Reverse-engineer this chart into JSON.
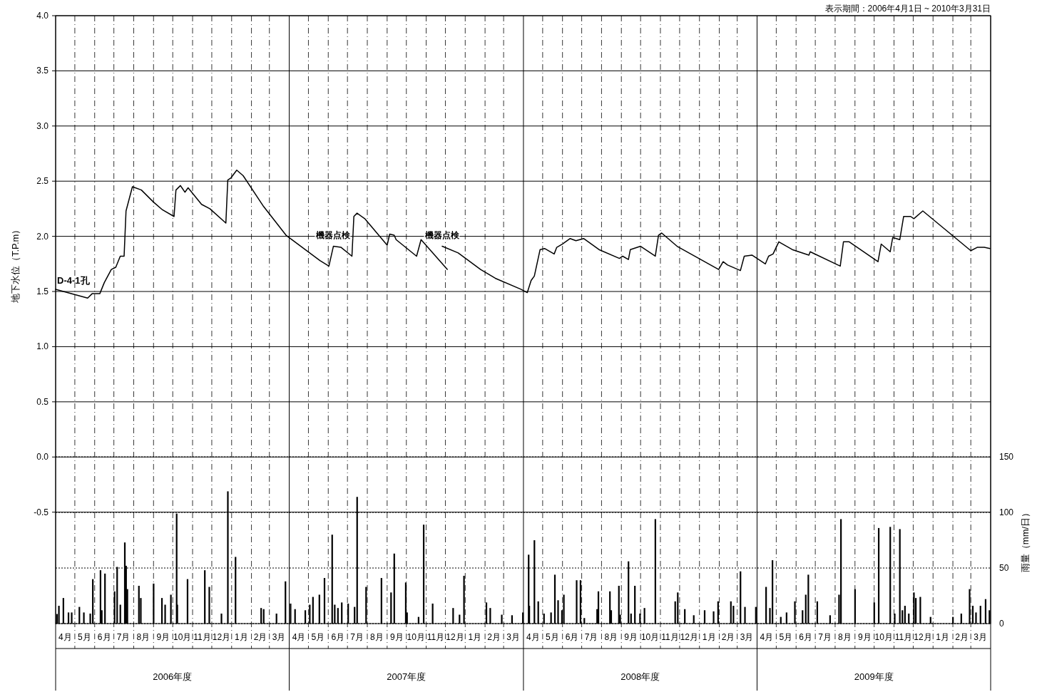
{
  "chart_data": {
    "type": "line",
    "subtitle": "表示期間：2006年4月1日 ~ 2010年3月31日",
    "ylabel": "地下水位（T.P.m）",
    "y2label": "雨量（mm/日）",
    "xlim": [
      "2006-04-01",
      "2010-04-01"
    ],
    "ylim": [
      -1.51,
      4.0
    ],
    "y2lim": [
      0,
      547
    ],
    "yticks": [
      {
        "value": 4,
        "label": "4.0"
      },
      {
        "value": 3.5,
        "label": "3.5"
      },
      {
        "value": 3,
        "label": "3.0"
      },
      {
        "value": 2.5,
        "label": "2.5"
      },
      {
        "value": 2,
        "label": "2.0"
      },
      {
        "value": 1.5,
        "label": "1.5"
      },
      {
        "value": 1,
        "label": "1.0"
      },
      {
        "value": 0.5,
        "label": "0.5"
      },
      {
        "value": 0,
        "label": "0.0"
      },
      {
        "value": -0.5,
        "label": "-0.5"
      }
    ],
    "y2ticks": [
      0,
      50,
      100,
      150
    ],
    "xticks": [
      {
        "value": "2006-04-16",
        "label": "4月"
      },
      {
        "value": "2006-05-16",
        "label": "5月"
      },
      {
        "value": "2006-06-16",
        "label": "6月"
      },
      {
        "value": "2006-07-16",
        "label": "7月"
      },
      {
        "value": "2006-08-16",
        "label": "8月"
      },
      {
        "value": "2006-09-16",
        "label": "9月"
      },
      {
        "value": "2006-10-16",
        "label": "10月"
      },
      {
        "value": "2006-11-16",
        "label": "11月"
      },
      {
        "value": "2006-12-16",
        "label": "12月"
      },
      {
        "value": "2007-01-16",
        "label": "1月"
      },
      {
        "value": "2007-02-15",
        "label": "2月"
      },
      {
        "value": "2007-03-16",
        "label": "3月"
      },
      {
        "value": "2007-04-16",
        "label": "4月"
      },
      {
        "value": "2007-05-16",
        "label": "5月"
      },
      {
        "value": "2007-06-16",
        "label": "6月"
      },
      {
        "value": "2007-07-16",
        "label": "7月"
      },
      {
        "value": "2007-08-16",
        "label": "8月"
      },
      {
        "value": "2007-09-16",
        "label": "9月"
      },
      {
        "value": "2007-10-16",
        "label": "10月"
      },
      {
        "value": "2007-11-16",
        "label": "11月"
      },
      {
        "value": "2007-12-16",
        "label": "12月"
      },
      {
        "value": "2008-01-16",
        "label": "1月"
      },
      {
        "value": "2008-02-15",
        "label": "2月"
      },
      {
        "value": "2008-03-16",
        "label": "3月"
      },
      {
        "value": "2008-04-16",
        "label": "4月"
      },
      {
        "value": "2008-05-16",
        "label": "5月"
      },
      {
        "value": "2008-06-16",
        "label": "6月"
      },
      {
        "value": "2008-07-16",
        "label": "7月"
      },
      {
        "value": "2008-08-16",
        "label": "8月"
      },
      {
        "value": "2008-09-16",
        "label": "9月"
      },
      {
        "value": "2008-10-16",
        "label": "10月"
      },
      {
        "value": "2008-11-16",
        "label": "11月"
      },
      {
        "value": "2008-12-16",
        "label": "12月"
      },
      {
        "value": "2009-01-16",
        "label": "1月"
      },
      {
        "value": "2009-02-15",
        "label": "2月"
      },
      {
        "value": "2009-03-16",
        "label": "3月"
      },
      {
        "value": "2009-04-16",
        "label": "4月"
      },
      {
        "value": "2009-05-16",
        "label": "5月"
      },
      {
        "value": "2009-06-16",
        "label": "6月"
      },
      {
        "value": "2009-07-16",
        "label": "7月"
      },
      {
        "value": "2009-08-16",
        "label": "8月"
      },
      {
        "value": "2009-09-16",
        "label": "9月"
      },
      {
        "value": "2009-10-16",
        "label": "10月"
      },
      {
        "value": "2009-11-16",
        "label": "11月"
      },
      {
        "value": "2009-12-16",
        "label": "12月"
      },
      {
        "value": "2010-01-16",
        "label": "1月"
      },
      {
        "value": "2010-02-15",
        "label": "2月"
      },
      {
        "value": "2010-03-16",
        "label": "3月"
      }
    ],
    "grid": true,
    "annotations": [
      {
        "text": "機器点検",
        "x": "2007-06-09",
        "y": 1.91
      },
      {
        "text": "機器点検",
        "x": "2007-11-26",
        "y": 1.91
      },
      "2006年度",
      "2007年度",
      "2008年度",
      "2009年度"
    ],
    "series": [
      {
        "name": "D-4-1孔",
        "color": "#000000",
        "x": [
          "2006-04-01",
          "2006-05-21",
          "2006-05-28",
          "2006-06-09",
          "2006-06-16",
          "2006-06-27",
          "2006-07-04",
          "2006-07-11",
          "2006-07-17",
          "2006-07-20",
          "2006-07-30",
          "2006-08-13",
          "2006-09-01",
          "2006-09-15",
          "2006-10-03",
          "2006-10-06",
          "2006-10-13",
          "2006-10-20",
          "2006-10-25",
          "2006-11-15",
          "2006-11-28",
          "2006-12-23",
          "2006-12-26",
          "2006-12-31",
          "2007-01-09",
          "2007-01-19",
          "2007-02-20",
          "2007-03-27",
          "2007-05-19",
          "2007-06-02",
          "2007-06-09",
          "2007-06-21",
          "2007-07-08",
          "2007-07-11",
          "2007-07-16",
          "2007-07-28",
          "2007-09-01",
          "2007-09-05",
          "2007-09-12",
          "2007-09-15",
          "2007-10-17",
          "2007-10-24",
          "2007-12-04",
          "2007-11-30",
          "2007-11-26",
          "2007-12-21",
          "2008-01-25",
          "2008-02-17",
          "2008-03-28",
          "2008-04-07",
          "2008-04-13",
          "2008-04-18",
          "2008-04-27",
          "2008-05-04",
          "2008-05-19",
          "2008-05-23",
          "2008-06-01",
          "2008-06-13",
          "2008-06-22",
          "2008-07-04",
          "2008-07-28",
          "2008-08-29",
          "2008-09-03",
          "2008-09-12",
          "2008-09-15",
          "2008-10-01",
          "2008-10-24",
          "2008-10-29",
          "2008-11-03",
          "2008-11-27",
          "2009-01-31",
          "2009-02-07",
          "2009-02-14",
          "2009-03-06",
          "2009-03-12",
          "2009-03-24",
          "2009-04-14",
          "2009-04-19",
          "2009-04-26",
          "2009-05-05",
          "2009-05-26",
          "2009-06-21",
          "2009-06-23",
          "2009-08-09",
          "2009-08-14",
          "2009-08-23",
          "2009-10-07",
          "2009-10-12",
          "2009-10-26",
          "2009-10-30",
          "2009-11-10",
          "2009-11-16",
          "2009-11-27",
          "2009-12-02",
          "2009-12-16",
          "2010-03-01",
          "2010-03-11",
          "2010-03-22",
          "2010-03-31"
        ],
        "values": [
          1.52,
          1.44,
          1.48,
          1.48,
          1.58,
          1.7,
          1.72,
          1.82,
          1.82,
          2.23,
          2.45,
          2.42,
          2.31,
          2.24,
          2.18,
          2.42,
          2.46,
          2.4,
          2.44,
          2.29,
          2.25,
          2.12,
          2.51,
          2.53,
          2.6,
          2.55,
          2.27,
          2.01,
          1.78,
          1.73,
          1.91,
          1.9,
          1.82,
          2.18,
          2.21,
          2.16,
          1.92,
          2.02,
          2.01,
          1.97,
          1.82,
          1.97,
          1.7,
          null,
          1.91,
          1.85,
          1.7,
          1.62,
          1.52,
          1.49,
          1.6,
          1.64,
          1.88,
          1.89,
          1.84,
          1.9,
          1.93,
          1.98,
          1.96,
          1.98,
          1.88,
          1.8,
          1.82,
          1.79,
          1.88,
          1.91,
          1.82,
          2.01,
          2.03,
          1.91,
          1.7,
          1.77,
          1.74,
          1.69,
          1.82,
          1.83,
          1.75,
          1.82,
          1.84,
          1.95,
          1.88,
          1.83,
          1.86,
          1.73,
          1.95,
          1.95,
          1.77,
          1.93,
          1.86,
          1.99,
          1.97,
          2.18,
          2.18,
          2.16,
          2.23,
          1.87,
          1.9,
          1.9,
          1.89
        ]
      },
      {
        "type": "bar",
        "axis": "y2",
        "color": "#000000",
        "x": [
          "2006-04-03",
          "2006-04-06",
          "2006-04-13",
          "2006-04-21",
          "2006-04-26",
          "2006-05-08",
          "2006-05-15",
          "2006-05-25",
          "2006-05-29",
          "2006-06-10",
          "2006-06-12",
          "2006-06-17",
          "2006-07-02",
          "2006-07-06",
          "2006-07-11",
          "2006-07-18",
          "2006-07-20",
          "2006-07-22",
          "2006-08-09",
          "2006-08-12",
          "2006-09-01",
          "2006-09-14",
          "2006-09-19",
          "2006-09-28",
          "2006-10-07",
          "2006-10-08",
          "2006-10-24",
          "2006-11-20",
          "2006-11-27",
          "2006-12-16",
          "2006-12-26",
          "2007-01-07",
          "2007-02-16",
          "2007-02-20",
          "2007-03-12",
          "2007-03-26",
          "2007-04-03",
          "2007-04-10",
          "2007-04-26",
          "2007-05-03",
          "2007-05-08",
          "2007-05-18",
          "2007-05-26",
          "2007-06-07",
          "2007-06-11",
          "2007-06-16",
          "2007-06-22",
          "2007-07-02",
          "2007-07-12",
          "2007-07-16",
          "2007-07-30",
          "2007-08-23",
          "2007-09-07",
          "2007-09-12",
          "2007-09-30",
          "2007-10-02",
          "2007-10-20",
          "2007-10-28",
          "2007-11-11",
          "2007-12-13",
          "2007-12-23",
          "2007-12-30",
          "2008-02-03",
          "2008-02-09",
          "2008-02-27",
          "2008-03-14",
          "2008-03-31",
          "2008-04-09",
          "2008-04-10",
          "2008-04-18",
          "2008-04-24",
          "2008-05-03",
          "2008-05-14",
          "2008-05-20",
          "2008-05-25",
          "2008-05-31",
          "2008-06-03",
          "2008-06-23",
          "2008-06-29",
          "2008-07-05",
          "2008-07-25",
          "2008-07-27",
          "2008-08-14",
          "2008-08-16",
          "2008-08-28",
          "2008-08-30",
          "2008-09-12",
          "2008-09-16",
          "2008-09-22",
          "2008-09-30",
          "2008-10-07",
          "2008-10-24",
          "2008-11-24",
          "2008-11-28",
          "2008-12-09",
          "2008-12-23",
          "2009-01-09",
          "2009-01-23",
          "2009-01-30",
          "2009-02-19",
          "2009-02-23",
          "2009-03-06",
          "2009-03-13",
          "2009-03-30",
          "2009-04-15",
          "2009-04-21",
          "2009-04-25",
          "2009-05-08",
          "2009-05-17",
          "2009-05-30",
          "2009-06-11",
          "2009-06-16",
          "2009-06-20",
          "2009-07-04",
          "2009-07-24",
          "2009-08-07",
          "2009-08-10",
          "2009-09-01",
          "2009-10-01",
          "2009-10-08",
          "2009-10-26",
          "2009-11-02",
          "2009-11-10",
          "2009-11-14",
          "2009-11-18",
          "2009-11-24",
          "2009-12-02",
          "2009-12-05",
          "2009-12-12",
          "2009-12-28",
          "2010-02-01",
          "2010-02-14",
          "2010-02-27",
          "2010-03-04",
          "2010-03-09",
          "2010-03-16",
          "2010-03-24",
          "2010-03-30"
        ],
        "values": [
          8.6,
          16,
          23,
          10,
          10,
          15,
          10,
          9,
          40,
          48,
          12,
          45,
          29,
          51,
          17,
          73,
          52,
          31,
          34,
          23,
          36,
          23,
          17,
          26,
          99,
          17,
          40,
          48,
          33,
          9,
          119,
          60,
          14,
          13,
          9,
          38,
          18,
          13,
          12,
          17,
          24,
          26,
          41,
          80,
          17,
          14,
          19,
          18,
          15,
          114,
          33,
          41,
          28,
          63,
          37,
          10,
          6,
          89,
          18,
          14,
          8,
          43,
          19,
          14,
          8,
          7.5,
          10,
          62,
          16,
          75,
          20,
          9,
          10,
          44,
          21,
          12,
          26,
          39,
          39,
          5,
          13,
          29,
          29,
          12,
          34,
          8,
          56,
          9,
          34,
          9,
          14,
          94,
          20,
          28,
          13,
          7.5,
          12,
          11,
          20,
          20,
          16,
          47,
          15,
          15,
          33,
          14,
          57,
          6,
          10,
          20,
          12,
          26,
          44,
          20,
          7.5,
          26,
          94,
          31,
          19,
          86,
          87,
          9,
          85,
          12,
          16,
          9,
          28,
          23,
          24,
          6,
          6,
          9,
          31,
          16,
          10,
          16,
          22,
          12
        ]
      }
    ]
  }
}
